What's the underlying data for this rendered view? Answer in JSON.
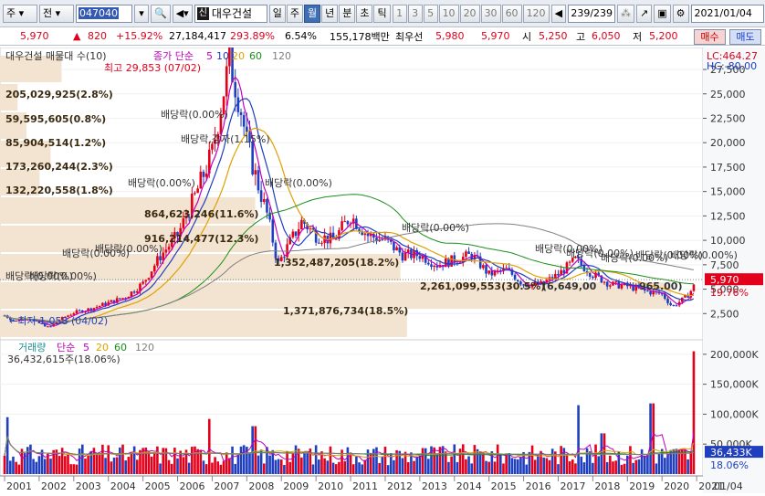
{
  "toolbar": {
    "market_sel": "주",
    "type_sel": "전",
    "code": "047040",
    "name_badge": "신",
    "name": "대우건설",
    "periods": [
      "일",
      "주",
      "월",
      "년",
      "분",
      "초",
      "틱"
    ],
    "active_period": "월",
    "intervals": [
      "1",
      "3",
      "5",
      "10",
      "20",
      "30",
      "60",
      "120"
    ],
    "count": "239/239",
    "date": "2021/01/04"
  },
  "quote": {
    "price": "5,970",
    "change": "820",
    "change_pct": "+15.92%",
    "volume": "27,184,417",
    "volume_pct": "293.89%",
    "turnover": "6.54%",
    "amount": "155,178백만",
    "best_label": "최우선",
    "best_price": "5,980",
    "second_price": "5,970",
    "open_label": "시",
    "open": "5,250",
    "high_label": "고",
    "high": "6,050",
    "low_label": "저",
    "low": "5,200",
    "buy_label": "매수",
    "sell_label": "매도"
  },
  "price_panel": {
    "title": "대우건설 매물대 수(10)",
    "ma_label": "종가 단순",
    "ma_periods": [
      "5",
      "10",
      "20",
      "60",
      "120"
    ],
    "ma_colors": [
      "#c000c0",
      "#1f3fbf",
      "#e0a000",
      "#1b8f1b",
      "#808080"
    ],
    "lc": "LC:464.27",
    "hc": "HC:-80.00",
    "max_label": "최고 29,853 (07/02)",
    "min_label": "←최저 1,058 (04/02)",
    "current_price_tag": "5,970",
    "current_pct_tag": "19.76%",
    "y_ticks": [
      "27,500",
      "25,000",
      "22,500",
      "20,000",
      "17,500",
      "15,000",
      "12,500",
      "10,000",
      "7,500",
      "5,000",
      "2,500"
    ],
    "volume_profile": [
      {
        "label": "205,029,925(2.8%)",
        "share": 2.8
      },
      {
        "label": "59,595,605(0.8%)",
        "share": 0.8
      },
      {
        "label": "85,904,514(1.2%)",
        "share": 1.2
      },
      {
        "label": "173,260,244(2.3%)",
        "share": 2.3
      },
      {
        "label": "132,220,558(1.8%)",
        "share": 1.8
      },
      {
        "label": "864,623,246(11.6%)",
        "share": 11.6
      },
      {
        "label": "916,214,477(12.3%)",
        "share": 12.3
      },
      {
        "label": "1,352,487,205(18.2%)",
        "share": 18.2
      },
      {
        "label": "2,261,099,553(30.5%)",
        "share": 30.5
      },
      {
        "label": "1,371,876,734(18.5%)",
        "share": 18.5
      }
    ],
    "dividend_labels": [
      "배당락(0.00%)",
      "배당락(0.00%)",
      "배당락(0.00%)",
      "배당락(0.00%)",
      "배당락(0.00%)",
      "배당락(0.00%)",
      "배당락,감자(1.15%)",
      "배당락(0.00%)",
      "배당락(0.00%)",
      "배당락(0.00%)",
      "배당락(0.00%)",
      "배당락(0.00%)",
      "배당락(0.00%)",
      "배당락(0.00%)"
    ],
    "overlap_labels": [
      "(6,649,00",
      "965.00)"
    ]
  },
  "volume_panel": {
    "title": "거래량",
    "ma_label": "단순",
    "ma_periods": [
      "5",
      "20",
      "60",
      "120"
    ],
    "last_value": "36,432,615주(18.06%)",
    "y_ticks": [
      "200,000K",
      "150,000K",
      "100,000K",
      "50,000K"
    ],
    "current_tag": "36,433K",
    "current_pct_tag": "18.06%"
  },
  "x_axis": {
    "years": [
      "2001",
      "2002",
      "2003",
      "2004",
      "2005",
      "2006",
      "2007",
      "2008",
      "2009",
      "2010",
      "2011",
      "2012",
      "2013",
      "2014",
      "2015",
      "2016",
      "2017",
      "2018",
      "2019",
      "2020",
      "2021"
    ],
    "corner": "01/04"
  },
  "chart_data": {
    "type": "candlestick",
    "x_start_year": 2001,
    "x_end_year": 2021,
    "price_ylim": [
      0,
      29000
    ],
    "volume_ylim": [
      0,
      215000
    ],
    "price_anchors": [
      [
        2001.0,
        2300
      ],
      [
        2001.3,
        1700
      ],
      [
        2001.6,
        2100
      ],
      [
        2002.0,
        1500
      ],
      [
        2002.3,
        1058
      ],
      [
        2002.6,
        1900
      ],
      [
        2003.0,
        2600
      ],
      [
        2003.5,
        3000
      ],
      [
        2004.0,
        3600
      ],
      [
        2004.5,
        4200
      ],
      [
        2005.0,
        5600
      ],
      [
        2005.5,
        8400
      ],
      [
        2006.0,
        10500
      ],
      [
        2006.5,
        14500
      ],
      [
        2007.0,
        19000
      ],
      [
        2007.5,
        28500
      ],
      [
        2007.8,
        24000
      ],
      [
        2008.0,
        20000
      ],
      [
        2008.3,
        16000
      ],
      [
        2008.6,
        12500
      ],
      [
        2008.9,
        7500
      ],
      [
        2009.2,
        9500
      ],
      [
        2009.6,
        12000
      ],
      [
        2010.0,
        10500
      ],
      [
        2010.5,
        10000
      ],
      [
        2011.0,
        12500
      ],
      [
        2011.5,
        10500
      ],
      [
        2012.0,
        10000
      ],
      [
        2012.5,
        8500
      ],
      [
        2013.0,
        8500
      ],
      [
        2013.5,
        7500
      ],
      [
        2014.0,
        8000
      ],
      [
        2014.5,
        8500
      ],
      [
        2015.0,
        6500
      ],
      [
        2015.5,
        7000
      ],
      [
        2016.0,
        5500
      ],
      [
        2016.5,
        5500
      ],
      [
        2017.0,
        6500
      ],
      [
        2017.5,
        8000
      ],
      [
        2018.0,
        6500
      ],
      [
        2018.5,
        5500
      ],
      [
        2019.0,
        5300
      ],
      [
        2019.5,
        4800
      ],
      [
        2020.0,
        4500
      ],
      [
        2020.3,
        3200
      ],
      [
        2020.7,
        4200
      ],
      [
        2020.9,
        5150
      ],
      [
        2021.0,
        5970
      ]
    ],
    "volume_spikes": [
      [
        2001.1,
        95000
      ],
      [
        2006.9,
        92000
      ],
      [
        2008.2,
        80000
      ],
      [
        2017.6,
        115000
      ],
      [
        2019.7,
        118000
      ],
      [
        2020.9,
        205000
      ],
      [
        2018.3,
        68000
      ]
    ]
  }
}
